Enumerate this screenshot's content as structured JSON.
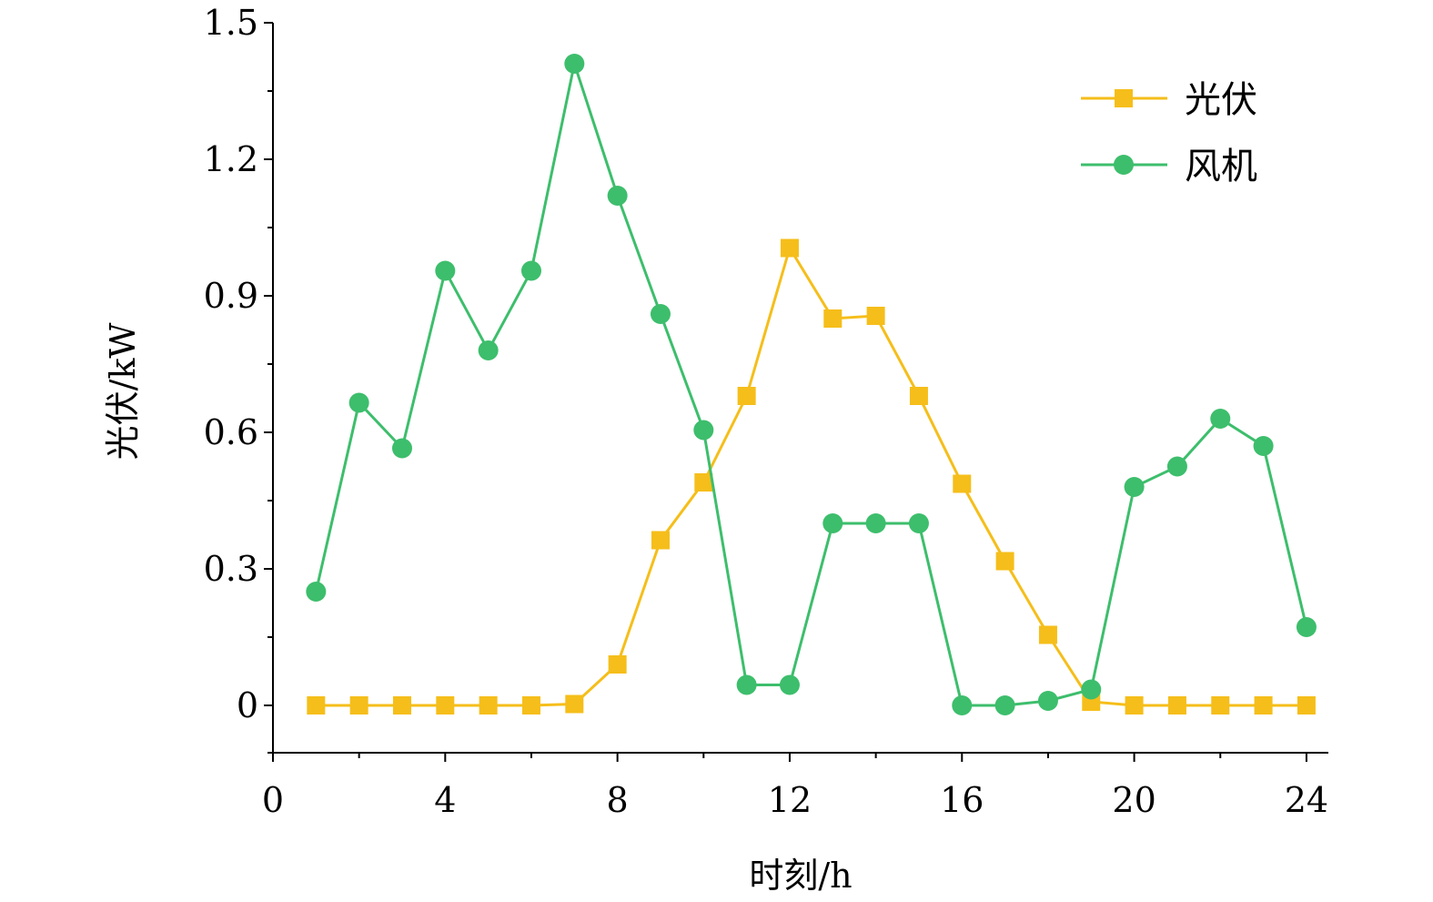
{
  "chart_data": {
    "type": "line",
    "xlabel": "时刻/h",
    "ylabel": "光伏/kW",
    "xlim": [
      0,
      24.5
    ],
    "ylim": [
      -0.1,
      1.5
    ],
    "xticks": [
      0,
      4,
      8,
      12,
      16,
      20,
      24
    ],
    "xtick_labels": [
      "0",
      "4",
      "8",
      "12",
      "16",
      "20",
      "24"
    ],
    "yticks": [
      0,
      0.3,
      0.6,
      0.9,
      1.2,
      1.5
    ],
    "ytick_labels": [
      "0",
      "0.3",
      "0.6",
      "0.9",
      "1.2",
      "1.5"
    ],
    "grid": false,
    "legend_position": "top-right",
    "x": [
      1,
      2,
      3,
      4,
      5,
      6,
      7,
      8,
      9,
      10,
      11,
      12,
      13,
      14,
      15,
      16,
      17,
      18,
      19,
      20,
      21,
      22,
      23,
      24
    ],
    "series": [
      {
        "name": "光伏",
        "color": "#F5BE1A",
        "marker": "square",
        "values": [
          0,
          0,
          0,
          0,
          0,
          0,
          0.003,
          0.09,
          0.363,
          0.49,
          0.68,
          1.005,
          0.85,
          0.856,
          0.68,
          0.487,
          0.317,
          0.155,
          0.008,
          0,
          0,
          0,
          0,
          0
        ]
      },
      {
        "name": "风机",
        "color": "#3DBE6C",
        "marker": "circle",
        "values": [
          0.25,
          0.665,
          0.565,
          0.955,
          0.78,
          0.955,
          1.41,
          1.12,
          0.86,
          0.605,
          0.045,
          0.045,
          0.4,
          0.4,
          0.4,
          0,
          0,
          0.01,
          0.035,
          0.48,
          0.525,
          0.63,
          0.57,
          0.172
        ]
      }
    ]
  }
}
